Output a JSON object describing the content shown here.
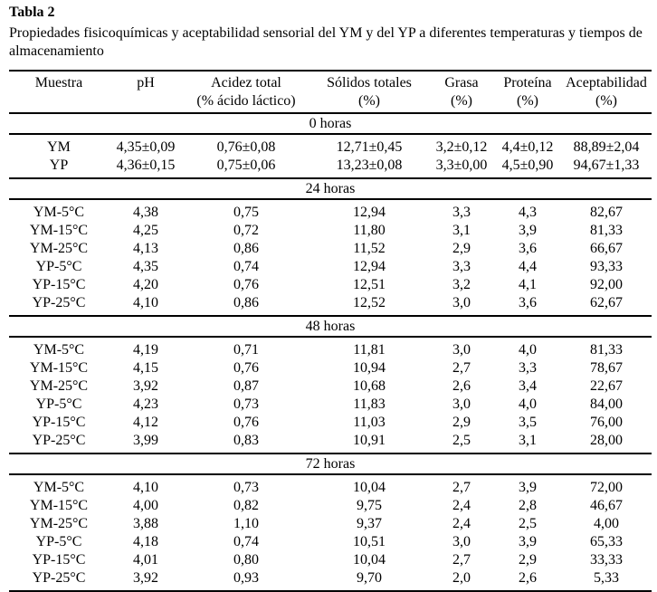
{
  "caption": {
    "title": "Tabla 2",
    "text": "Propiedades fisicoquímicas y aceptabilidad sensorial del YM y del YP a diferentes temperaturas y tiempos de almacenamiento"
  },
  "headers": [
    {
      "line1": "Muestra",
      "line2": ""
    },
    {
      "line1": "pH",
      "line2": ""
    },
    {
      "line1": "Acidez total",
      "line2": "(% ácido láctico)"
    },
    {
      "line1": "Sólidos totales",
      "line2": "(%)"
    },
    {
      "line1": "Grasa",
      "line2": "(%)"
    },
    {
      "line1": "Proteína",
      "line2": "(%)"
    },
    {
      "line1": "Aceptabilidad",
      "line2": "(%)"
    }
  ],
  "sections": [
    {
      "label": "0 horas",
      "rows": [
        [
          "YM",
          "4,35±0,09",
          "0,76±0,08",
          "12,71±0,45",
          "3,2±0,12",
          "4,4±0,12",
          "88,89±2,04"
        ],
        [
          "YP",
          "4,36±0,15",
          "0,75±0,06",
          "13,23±0,08",
          "3,3±0,00",
          "4,5±0,90",
          "94,67±1,33"
        ]
      ]
    },
    {
      "label": "24 horas",
      "rows": [
        [
          "YM-5°C",
          "4,38",
          "0,75",
          "12,94",
          "3,3",
          "4,3",
          "82,67"
        ],
        [
          "YM-15°C",
          "4,25",
          "0,72",
          "11,80",
          "3,1",
          "3,9",
          "81,33"
        ],
        [
          "YM-25°C",
          "4,13",
          "0,86",
          "11,52",
          "2,9",
          "3,6",
          "66,67"
        ],
        [
          "YP-5°C",
          "4,35",
          "0,74",
          "12,94",
          "3,3",
          "4,4",
          "93,33"
        ],
        [
          "YP-15°C",
          "4,20",
          "0,76",
          "12,51",
          "3,2",
          "4,1",
          "92,00"
        ],
        [
          "YP-25°C",
          "4,10",
          "0,86",
          "12,52",
          "3,0",
          "3,6",
          "62,67"
        ]
      ]
    },
    {
      "label": "48 horas",
      "rows": [
        [
          "YM-5°C",
          "4,19",
          "0,71",
          "11,81",
          "3,0",
          "4,0",
          "81,33"
        ],
        [
          "YM-15°C",
          "4,15",
          "0,76",
          "10,94",
          "2,7",
          "3,3",
          "78,67"
        ],
        [
          "YM-25°C",
          "3,92",
          "0,87",
          "10,68",
          "2,6",
          "3,4",
          "22,67"
        ],
        [
          "YP-5°C",
          "4,23",
          "0,73",
          "11,83",
          "3,0",
          "4,0",
          "84,00"
        ],
        [
          "YP-15°C",
          "4,12",
          "0,76",
          "11,03",
          "2,9",
          "3,5",
          "76,00"
        ],
        [
          "YP-25°C",
          "3,99",
          "0,83",
          "10,91",
          "2,5",
          "3,1",
          "28,00"
        ]
      ]
    },
    {
      "label": "72 horas",
      "rows": [
        [
          "YM-5°C",
          "4,10",
          "0,73",
          "10,04",
          "2,7",
          "3,9",
          "72,00"
        ],
        [
          "YM-15°C",
          "4,00",
          "0,82",
          "9,75",
          "2,4",
          "2,8",
          "46,67"
        ],
        [
          "YM-25°C",
          "3,88",
          "1,10",
          "9,37",
          "2,4",
          "2,5",
          "4,00"
        ],
        [
          "YP-5°C",
          "4,18",
          "0,74",
          "10,51",
          "3,0",
          "3,9",
          "65,33"
        ],
        [
          "YP-15°C",
          "4,01",
          "0,80",
          "10,04",
          "2,7",
          "2,9",
          "33,33"
        ],
        [
          "YP-25°C",
          "3,92",
          "0,93",
          "9,70",
          "2,0",
          "2,6",
          "5,33"
        ]
      ]
    }
  ]
}
